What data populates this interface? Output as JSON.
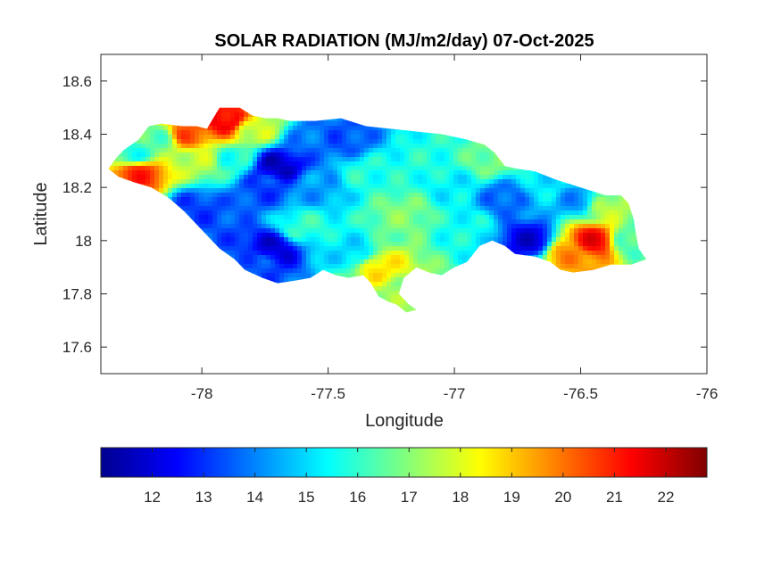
{
  "chart_data": {
    "type": "heatmap",
    "title": "SOLAR RADIATION (MJ/m2/day) 07-Oct-2025",
    "xlabel": "Longitude",
    "ylabel": "Latitude",
    "xlim": [
      -78.4,
      -76
    ],
    "ylim": [
      17.5,
      18.7
    ],
    "x_ticks": [
      -78,
      -77.5,
      -77,
      -76.5,
      -76
    ],
    "x_tick_labels": [
      "-78",
      "-77.5",
      "-77",
      "-76.5",
      "-76"
    ],
    "y_ticks": [
      17.6,
      17.8,
      18,
      18.2,
      18.4,
      18.6
    ],
    "y_tick_labels": [
      "17.6",
      "17.8",
      "18",
      "18.2",
      "18.4",
      "18.6"
    ],
    "colorbar": {
      "orientation": "horizontal",
      "colormap": "jet",
      "range": [
        11,
        22.8
      ],
      "ticks": [
        12,
        13,
        14,
        15,
        16,
        17,
        18,
        19,
        20,
        21,
        22
      ],
      "tick_labels": [
        "12",
        "13",
        "14",
        "15",
        "16",
        "17",
        "18",
        "19",
        "20",
        "21",
        "22"
      ]
    },
    "grid": false,
    "outline_lonlat": [
      [
        -78.37,
        18.27
      ],
      [
        -78.34,
        18.31
      ],
      [
        -78.31,
        18.34
      ],
      [
        -78.28,
        18.36
      ],
      [
        -78.25,
        18.38
      ],
      [
        -78.21,
        18.43
      ],
      [
        -78.16,
        18.44
      ],
      [
        -78.08,
        18.43
      ],
      [
        -78.02,
        18.43
      ],
      [
        -77.98,
        18.42
      ],
      [
        -77.93,
        18.5
      ],
      [
        -77.85,
        18.5
      ],
      [
        -77.8,
        18.47
      ],
      [
        -77.75,
        18.46
      ],
      [
        -77.7,
        18.46
      ],
      [
        -77.65,
        18.45
      ],
      [
        -77.55,
        18.45
      ],
      [
        -77.45,
        18.46
      ],
      [
        -77.35,
        18.43
      ],
      [
        -77.25,
        18.42
      ],
      [
        -77.15,
        18.41
      ],
      [
        -77.05,
        18.4
      ],
      [
        -76.95,
        18.38
      ],
      [
        -76.88,
        18.36
      ],
      [
        -76.84,
        18.33
      ],
      [
        -76.8,
        18.28
      ],
      [
        -76.75,
        18.27
      ],
      [
        -76.68,
        18.26
      ],
      [
        -76.6,
        18.23
      ],
      [
        -76.5,
        18.2
      ],
      [
        -76.4,
        18.17
      ],
      [
        -76.34,
        18.17
      ],
      [
        -76.31,
        18.14
      ],
      [
        -76.29,
        18.08
      ],
      [
        -76.28,
        18.02
      ],
      [
        -76.27,
        17.97
      ],
      [
        -76.24,
        17.93
      ],
      [
        -76.3,
        17.91
      ],
      [
        -76.38,
        17.91
      ],
      [
        -76.45,
        17.89
      ],
      [
        -76.53,
        17.88
      ],
      [
        -76.58,
        17.89
      ],
      [
        -76.62,
        17.92
      ],
      [
        -76.68,
        17.94
      ],
      [
        -76.76,
        17.95
      ],
      [
        -76.8,
        17.98
      ],
      [
        -76.85,
        18.0
      ],
      [
        -76.9,
        17.98
      ],
      [
        -76.95,
        17.92
      ],
      [
        -77.0,
        17.9
      ],
      [
        -77.05,
        17.87
      ],
      [
        -77.1,
        17.88
      ],
      [
        -77.15,
        17.9
      ],
      [
        -77.2,
        17.86
      ],
      [
        -77.22,
        17.8
      ],
      [
        -77.18,
        17.76
      ],
      [
        -77.15,
        17.74
      ],
      [
        -77.19,
        17.73
      ],
      [
        -77.23,
        17.76
      ],
      [
        -77.26,
        17.77
      ],
      [
        -77.3,
        17.79
      ],
      [
        -77.33,
        17.84
      ],
      [
        -77.36,
        17.87
      ],
      [
        -77.42,
        17.86
      ],
      [
        -77.47,
        17.87
      ],
      [
        -77.52,
        17.89
      ],
      [
        -77.57,
        17.86
      ],
      [
        -77.63,
        17.85
      ],
      [
        -77.7,
        17.84
      ],
      [
        -77.76,
        17.86
      ],
      [
        -77.83,
        17.89
      ],
      [
        -77.87,
        17.93
      ],
      [
        -77.93,
        17.97
      ],
      [
        -78.0,
        18.04
      ],
      [
        -78.07,
        18.11
      ],
      [
        -78.13,
        18.16
      ],
      [
        -78.2,
        18.2
      ],
      [
        -78.27,
        18.22
      ],
      [
        -78.33,
        18.24
      ],
      [
        -78.37,
        18.27
      ]
    ],
    "field_anchors": [
      {
        "lon": -78.25,
        "lat": 18.25,
        "value": 20.8
      },
      {
        "lon": -78.27,
        "lat": 18.33,
        "value": 15.8
      },
      {
        "lon": -78.18,
        "lat": 18.38,
        "value": 16.5
      },
      {
        "lon": -78.05,
        "lat": 18.4,
        "value": 20.3
      },
      {
        "lon": -78.0,
        "lat": 18.3,
        "value": 17.6
      },
      {
        "lon": -78.02,
        "lat": 18.12,
        "value": 13.2
      },
      {
        "lon": -77.9,
        "lat": 18.45,
        "value": 21.5
      },
      {
        "lon": -77.8,
        "lat": 18.42,
        "value": 17.8
      },
      {
        "lon": -77.88,
        "lat": 18.3,
        "value": 15.8
      },
      {
        "lon": -77.75,
        "lat": 18.2,
        "value": 13.2
      },
      {
        "lon": -77.7,
        "lat": 18.28,
        "value": 11.8
      },
      {
        "lon": -77.72,
        "lat": 17.97,
        "value": 12.1
      },
      {
        "lon": -77.8,
        "lat": 17.92,
        "value": 13.5
      },
      {
        "lon": -77.55,
        "lat": 18.38,
        "value": 13.8
      },
      {
        "lon": -77.55,
        "lat": 18.2,
        "value": 14.3
      },
      {
        "lon": -77.6,
        "lat": 18.05,
        "value": 16.0
      },
      {
        "lon": -77.45,
        "lat": 18.38,
        "value": 13.4
      },
      {
        "lon": -77.35,
        "lat": 18.25,
        "value": 15.8
      },
      {
        "lon": -77.4,
        "lat": 17.95,
        "value": 15.0
      },
      {
        "lon": -77.3,
        "lat": 17.9,
        "value": 18.6
      },
      {
        "lon": -77.2,
        "lat": 17.8,
        "value": 17.2
      },
      {
        "lon": -77.2,
        "lat": 18.1,
        "value": 16.9
      },
      {
        "lon": -77.1,
        "lat": 18.3,
        "value": 15.8
      },
      {
        "lon": -77.0,
        "lat": 18.2,
        "value": 15.3
      },
      {
        "lon": -76.95,
        "lat": 18.05,
        "value": 15.6
      },
      {
        "lon": -76.85,
        "lat": 18.3,
        "value": 16.8
      },
      {
        "lon": -76.8,
        "lat": 18.16,
        "value": 13.6
      },
      {
        "lon": -76.7,
        "lat": 18.0,
        "value": 12.1
      },
      {
        "lon": -76.65,
        "lat": 18.2,
        "value": 15.2
      },
      {
        "lon": -76.55,
        "lat": 17.95,
        "value": 19.6
      },
      {
        "lon": -76.45,
        "lat": 18.0,
        "value": 21.3
      },
      {
        "lon": -76.4,
        "lat": 18.12,
        "value": 17.5
      },
      {
        "lon": -76.3,
        "lat": 18.0,
        "value": 16.2
      },
      {
        "lon": -76.52,
        "lat": 18.15,
        "value": 14.2
      }
    ]
  }
}
